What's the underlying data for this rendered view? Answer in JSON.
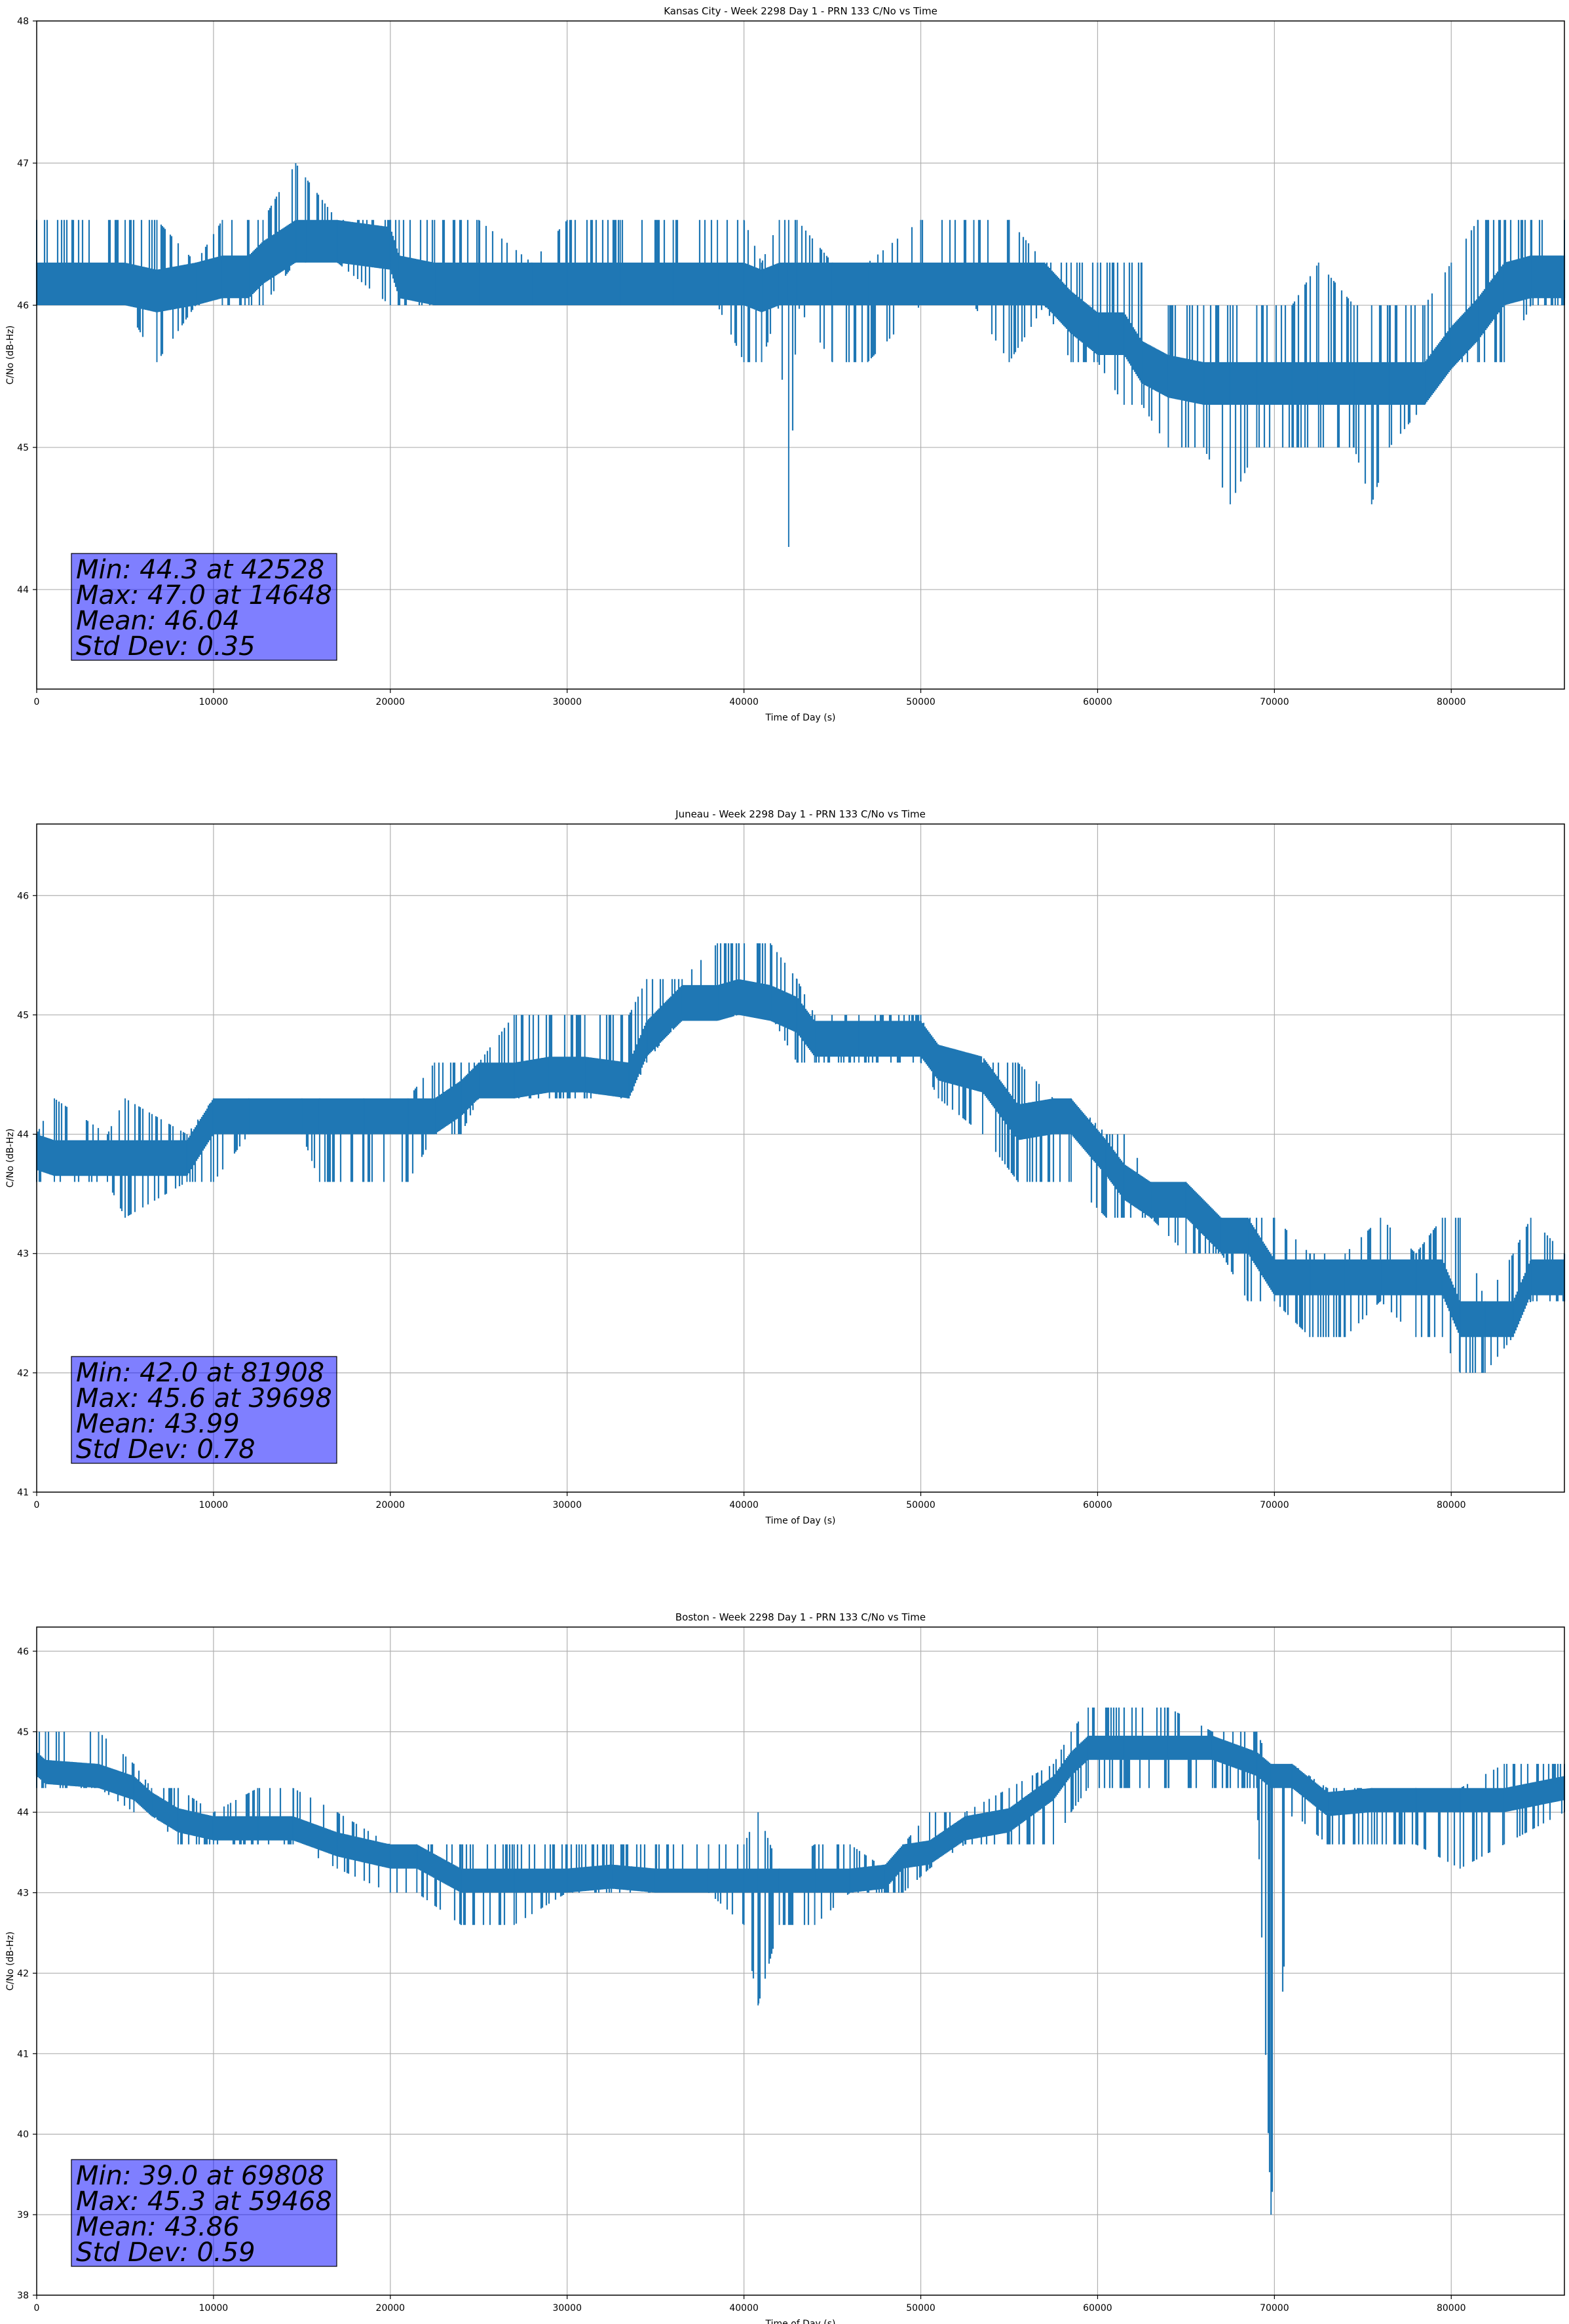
{
  "chart_data": [
    {
      "type": "line",
      "title": "Kansas City - Week 2298 Day 1 - PRN 133 C/No vs Time",
      "xlabel": "Time of Day (s)",
      "ylabel": "C/No (dB-Hz)",
      "xlim": [
        0,
        86400
      ],
      "ylim": [
        43.3,
        48
      ],
      "xticks": [
        0,
        10000,
        20000,
        30000,
        40000,
        50000,
        60000,
        70000,
        80000
      ],
      "yticks": [
        44,
        45,
        46,
        47,
        48
      ],
      "grid": true,
      "color": "#1f77b4",
      "stats": [
        "Min: 44.3 at 42528",
        "Max: 47.0 at 14648",
        "Mean: 46.04",
        "Std Dev: 0.35"
      ],
      "series": [
        {
          "x": [
            0,
            2000,
            5000,
            6800,
            9000,
            10500,
            12000,
            12800,
            14648,
            15200,
            17000,
            20000,
            20500,
            22500,
            25000,
            28000,
            30000,
            33000,
            36000,
            38500,
            40000,
            41000,
            42000,
            42528,
            43000,
            45000,
            47000,
            50000,
            53000,
            55000,
            57000,
            58500,
            60000,
            61500,
            62500,
            64000,
            66000,
            67500,
            69000,
            71000,
            72500,
            74500,
            75500,
            76500,
            78500,
            80000,
            81500,
            83000,
            84500,
            86400
          ],
          "y": [
            46.15,
            46.15,
            46.15,
            46.1,
            46.15,
            46.2,
            46.2,
            46.3,
            46.45,
            46.45,
            46.45,
            46.4,
            46.2,
            46.15,
            46.15,
            46.15,
            46.15,
            46.15,
            46.15,
            46.15,
            46.15,
            46.1,
            46.15,
            46.15,
            46.15,
            46.15,
            46.15,
            46.15,
            46.15,
            46.15,
            46.15,
            45.95,
            45.8,
            45.8,
            45.6,
            45.5,
            45.45,
            45.45,
            45.45,
            45.45,
            45.45,
            45.45,
            45.45,
            45.45,
            45.45,
            45.7,
            45.9,
            46.15,
            46.2,
            46.2
          ],
          "band_low": [
            46.0,
            46.0,
            46.0,
            45.6,
            46.0,
            46.0,
            46.0,
            46.0,
            46.3,
            46.3,
            46.3,
            46.0,
            46.0,
            46.0,
            46.0,
            46.0,
            46.0,
            46.0,
            46.0,
            46.0,
            45.6,
            45.6,
            46.0,
            44.3,
            46.0,
            45.6,
            45.6,
            46.0,
            46.0,
            45.6,
            46.0,
            45.6,
            45.6,
            45.3,
            45.3,
            45.0,
            45.0,
            44.6,
            45.0,
            45.0,
            45.0,
            45.0,
            44.6,
            45.0,
            45.3,
            45.6,
            45.6,
            45.6,
            46.0,
            46.0
          ],
          "band_high": [
            46.6,
            46.6,
            46.6,
            46.6,
            46.3,
            46.6,
            46.6,
            46.6,
            47.0,
            46.9,
            46.6,
            46.6,
            46.6,
            46.6,
            46.6,
            46.3,
            46.6,
            46.6,
            46.6,
            46.6,
            46.6,
            46.3,
            46.6,
            46.6,
            46.6,
            46.3,
            46.3,
            46.6,
            46.6,
            46.6,
            46.3,
            46.3,
            46.3,
            46.3,
            46.3,
            46.0,
            46.0,
            46.0,
            46.0,
            46.0,
            46.3,
            46.0,
            46.0,
            46.0,
            46.0,
            46.3,
            46.6,
            46.6,
            46.6,
            46.6
          ]
        }
      ]
    },
    {
      "type": "line",
      "title": "Juneau - Week 2298 Day 1 - PRN 133 C/No vs Time",
      "xlabel": "Time of Day (s)",
      "ylabel": "C/No (dB-Hz)",
      "xlim": [
        0,
        86400
      ],
      "ylim": [
        41,
        46.6
      ],
      "xticks": [
        0,
        10000,
        20000,
        30000,
        40000,
        50000,
        60000,
        70000,
        80000
      ],
      "yticks": [
        41,
        42,
        43,
        44,
        45,
        46
      ],
      "grid": true,
      "color": "#1f77b4",
      "stats": [
        "Min: 42.0 at 81908",
        "Max: 45.6 at 39698",
        "Mean: 43.99",
        "Std Dev: 0.78"
      ],
      "series": [
        {
          "x": [
            0,
            1000,
            4000,
            5000,
            8500,
            10000,
            12000,
            15000,
            16000,
            18500,
            21000,
            22500,
            24000,
            25000,
            27000,
            29000,
            31000,
            33500,
            34500,
            36500,
            38500,
            39698,
            41500,
            43000,
            44000,
            46500,
            50000,
            51000,
            53500,
            55500,
            57500,
            58500,
            60500,
            61500,
            63000,
            65000,
            67000,
            68500,
            70000,
            72000,
            74000,
            76000,
            78000,
            79500,
            80500,
            81908,
            83500,
            84500,
            86400
          ],
          "y": [
            43.85,
            43.8,
            43.8,
            43.8,
            43.8,
            44.15,
            44.15,
            44.15,
            44.15,
            44.15,
            44.15,
            44.15,
            44.3,
            44.45,
            44.45,
            44.5,
            44.5,
            44.45,
            44.8,
            45.1,
            45.1,
            45.15,
            45.1,
            45.0,
            44.8,
            44.8,
            44.8,
            44.6,
            44.5,
            44.1,
            44.15,
            44.15,
            43.8,
            43.6,
            43.45,
            43.45,
            43.15,
            43.15,
            42.8,
            42.8,
            42.8,
            42.8,
            42.8,
            42.8,
            42.45,
            42.45,
            42.45,
            42.8,
            42.8
          ],
          "band_low": [
            43.6,
            43.6,
            43.6,
            43.3,
            43.6,
            43.6,
            44.0,
            44.0,
            43.6,
            43.6,
            43.6,
            44.0,
            44.0,
            44.3,
            44.3,
            44.3,
            44.3,
            44.3,
            44.6,
            45.0,
            45.0,
            45.0,
            45.0,
            44.6,
            44.6,
            44.6,
            44.6,
            44.3,
            44.0,
            43.6,
            43.6,
            43.6,
            43.3,
            43.3,
            43.3,
            43.0,
            43.0,
            42.6,
            42.6,
            42.3,
            42.3,
            42.6,
            42.3,
            42.3,
            42.0,
            42.0,
            42.3,
            42.6,
            42.6
          ],
          "band_high": [
            44.0,
            44.3,
            44.0,
            44.3,
            44.0,
            44.3,
            44.3,
            44.3,
            44.3,
            44.3,
            44.3,
            44.6,
            44.6,
            44.6,
            45.0,
            45.0,
            45.0,
            45.0,
            45.3,
            45.3,
            45.6,
            45.6,
            45.6,
            45.3,
            45.0,
            45.0,
            45.0,
            44.6,
            44.6,
            44.6,
            44.3,
            44.3,
            44.0,
            44.0,
            43.6,
            43.6,
            43.3,
            43.3,
            43.3,
            43.0,
            43.0,
            43.3,
            43.0,
            43.3,
            43.3,
            42.6,
            43.0,
            43.3,
            43.0
          ]
        }
      ]
    },
    {
      "type": "line",
      "title": "Boston - Week 2298 Day 1 - PRN 133 C/No vs Time",
      "xlabel": "Time of Day (s)",
      "ylabel": "C/No (dB-Hz)",
      "xlim": [
        0,
        86400
      ],
      "ylim": [
        38,
        46.3
      ],
      "xticks": [
        0,
        10000,
        20000,
        30000,
        40000,
        50000,
        60000,
        70000,
        80000
      ],
      "yticks": [
        38,
        39,
        40,
        41,
        42,
        43,
        44,
        45,
        46
      ],
      "grid": true,
      "color": "#1f77b4",
      "stats": [
        "Min: 39.0 at 69808",
        "Max: 45.3 at 59468",
        "Mean: 43.86",
        "Std Dev: 0.59"
      ],
      "series": [
        {
          "x": [
            0,
            500,
            3500,
            5500,
            6500,
            8000,
            10000,
            12500,
            14500,
            17000,
            20000,
            21500,
            24000,
            27000,
            30000,
            32500,
            35000,
            38000,
            40000,
            40800,
            42000,
            44000,
            46000,
            48000,
            49000,
            50500,
            52500,
            55000,
            57500,
            58500,
            59468,
            61500,
            64000,
            66500,
            69000,
            69808,
            71000,
            73000,
            75500,
            78000,
            80500,
            83000,
            86400
          ],
          "y": [
            44.6,
            44.5,
            44.45,
            44.3,
            44.1,
            43.9,
            43.8,
            43.8,
            43.8,
            43.6,
            43.45,
            43.45,
            43.15,
            43.15,
            43.15,
            43.2,
            43.15,
            43.15,
            43.15,
            43.15,
            43.15,
            43.15,
            43.15,
            43.2,
            43.45,
            43.5,
            43.8,
            43.9,
            44.3,
            44.6,
            44.8,
            44.8,
            44.8,
            44.8,
            44.6,
            44.45,
            44.45,
            44.1,
            44.15,
            44.15,
            44.15,
            44.15,
            44.3
          ],
          "band_low": [
            44.3,
            44.3,
            44.3,
            44.0,
            44.0,
            43.6,
            43.6,
            43.6,
            43.6,
            43.3,
            43.0,
            43.0,
            42.6,
            42.6,
            43.0,
            43.0,
            43.0,
            43.0,
            42.6,
            41.6,
            42.6,
            42.6,
            43.0,
            43.0,
            43.0,
            43.3,
            43.6,
            43.6,
            43.6,
            44.0,
            44.3,
            44.3,
            44.3,
            44.3,
            44.3,
            39.0,
            44.0,
            43.6,
            43.6,
            43.6,
            43.3,
            43.6,
            44.0
          ],
          "band_high": [
            45.0,
            45.0,
            45.0,
            44.6,
            44.3,
            44.3,
            44.0,
            44.3,
            44.3,
            44.0,
            43.6,
            43.6,
            43.6,
            43.6,
            43.6,
            43.6,
            43.6,
            43.6,
            43.6,
            44.0,
            43.3,
            43.6,
            43.6,
            43.3,
            43.6,
            44.0,
            44.0,
            44.3,
            44.6,
            45.0,
            45.3,
            45.3,
            45.3,
            45.0,
            45.0,
            44.6,
            44.6,
            44.3,
            44.3,
            44.3,
            44.3,
            44.6,
            44.6
          ]
        }
      ]
    }
  ]
}
